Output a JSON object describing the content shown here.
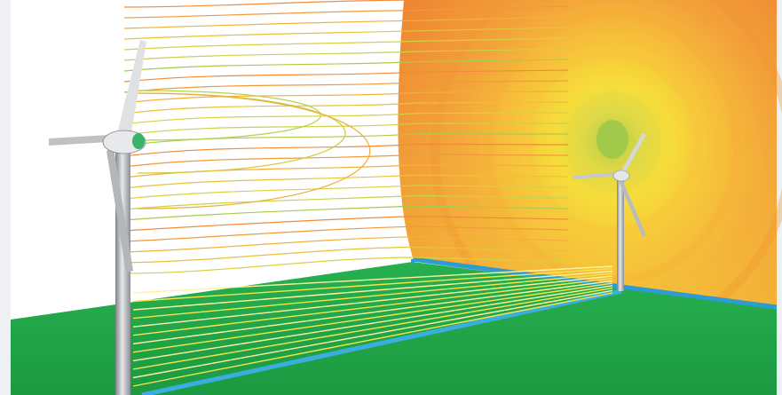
{
  "scene": {
    "colors": {
      "frame": "#eef0f3",
      "sky": "#ffffff",
      "ground": "#22a84a",
      "ground_dark": "#1d9a43",
      "water_stripe": "#3aa8d8",
      "field_hot": "#ec6a2a",
      "field_mid": "#f3a23a",
      "field_warm": "#f7d23c",
      "field_core": "#a9cf4a",
      "turbine": "#c9ccd0"
    },
    "contour_count": 26,
    "turbines": [
      "near-turbine",
      "far-turbine"
    ]
  }
}
